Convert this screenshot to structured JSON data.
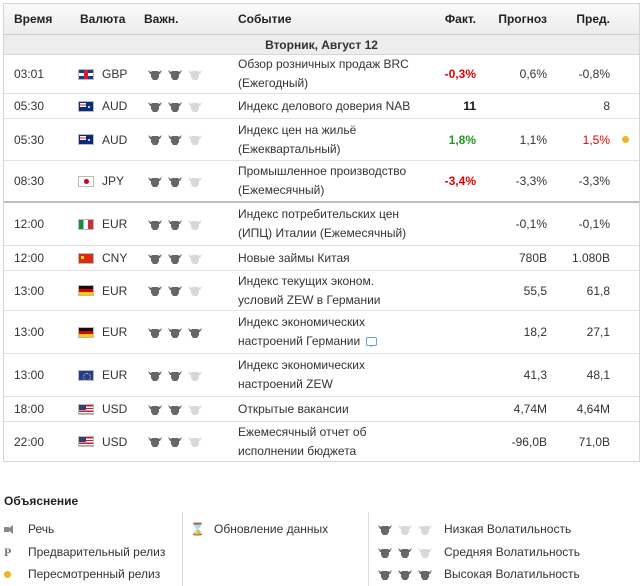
{
  "header": {
    "time": "Время",
    "currency": "Валюта",
    "importance": "Важн.",
    "event": "Событие",
    "actual": "Факт.",
    "forecast": "Прогноз",
    "previous": "Пред."
  },
  "day_label": "Вторник, Август 12",
  "rows": [
    {
      "time": "03:01",
      "flag": "gb",
      "currency": "GBP",
      "importance": 2,
      "event_line1": "Обзор розничных продаж BRC",
      "event_line2": "(Ежегодный)",
      "actual": "-0,3%",
      "actual_color": "red",
      "forecast": "0,6%",
      "previous": "-0,8%",
      "previous_color": "",
      "dot": false,
      "comment": false
    },
    {
      "time": "05:30",
      "flag": "au",
      "currency": "AUD",
      "importance": 2,
      "event_line1": "Индекс делового доверия NAB",
      "event_line2": "",
      "actual": "11",
      "actual_color": "black",
      "forecast": "",
      "previous": "8",
      "previous_color": "",
      "dot": false,
      "comment": false
    },
    {
      "time": "05:30",
      "flag": "au",
      "currency": "AUD",
      "importance": 2,
      "event_line1": "Индекс цен на жильё",
      "event_line2": "(Ежеквартальный)",
      "actual": "1,8%",
      "actual_color": "green",
      "forecast": "1,1%",
      "previous": "1,5%",
      "previous_color": "red",
      "dot": true,
      "comment": false
    },
    {
      "time": "08:30",
      "flag": "jp",
      "currency": "JPY",
      "importance": 2,
      "event_line1": "Промышленное производство",
      "event_line2": "(Ежемесячный)",
      "actual": "-3,4%",
      "actual_color": "red",
      "forecast": "-3,3%",
      "previous": "-3,3%",
      "previous_color": "",
      "dot": false,
      "comment": false
    },
    {
      "time": "12:00",
      "flag": "it",
      "currency": "EUR",
      "importance": 2,
      "event_line1": "Индекс потребительских цен",
      "event_line2": "(ИПЦ) Италии (Ежемесячный)",
      "actual": "",
      "actual_color": "",
      "forecast": "-0,1%",
      "previous": "-0,1%",
      "previous_color": "",
      "dot": false,
      "comment": false
    },
    {
      "time": "12:00",
      "flag": "cn",
      "currency": "CNY",
      "importance": 2,
      "event_line1": "Новые займы Китая",
      "event_line2": "",
      "actual": "",
      "actual_color": "",
      "forecast": "780B",
      "previous": "1.080B",
      "previous_color": "",
      "dot": false,
      "comment": false
    },
    {
      "time": "13:00",
      "flag": "de",
      "currency": "EUR",
      "importance": 2,
      "event_line1": "Индекс текущих эконом.",
      "event_line2": "условий ZEW в Германии",
      "actual": "",
      "actual_color": "",
      "forecast": "55,5",
      "previous": "61,8",
      "previous_color": "",
      "dot": false,
      "comment": false
    },
    {
      "time": "13:00",
      "flag": "de",
      "currency": "EUR",
      "importance": 3,
      "event_line1": "Индекс экономических",
      "event_line2": "настроений Германии",
      "actual": "",
      "actual_color": "",
      "forecast": "18,2",
      "previous": "27,1",
      "previous_color": "",
      "dot": false,
      "comment": true
    },
    {
      "time": "13:00",
      "flag": "eu",
      "currency": "EUR",
      "importance": 2,
      "event_line1": "Индекс экономических",
      "event_line2": "настроений ZEW",
      "actual": "",
      "actual_color": "",
      "forecast": "41,3",
      "previous": "48,1",
      "previous_color": "",
      "dot": false,
      "comment": false
    },
    {
      "time": "18:00",
      "flag": "us",
      "currency": "USD",
      "importance": 2,
      "event_line1": "Открытые вакансии",
      "event_line2": "",
      "actual": "",
      "actual_color": "",
      "forecast": "4,74M",
      "previous": "4,64M",
      "previous_color": "",
      "dot": false,
      "comment": false
    },
    {
      "time": "22:00",
      "flag": "us",
      "currency": "USD",
      "importance": 2,
      "event_line1": "Ежемесячный отчет об",
      "event_line2": "исполнении бюджета",
      "actual": "",
      "actual_color": "",
      "forecast": "-96,0B",
      "previous": "71,0B",
      "previous_color": "",
      "dot": false,
      "comment": false
    }
  ],
  "legend": {
    "title": "Объяснение",
    "speech": "Речь",
    "preliminary": "Предварительный релиз",
    "preliminary_icon": "P",
    "revised": "Пересмотренный релиз",
    "data_update": "Обновление данных",
    "low_vol": "Низкая Волатильность",
    "mid_vol": "Средняя Волатильность",
    "high_vol": "Высокая Волатильность"
  },
  "colors": {
    "red": "#e00000",
    "green": "#1f9a1f",
    "revised_dot": "#f0b323"
  }
}
